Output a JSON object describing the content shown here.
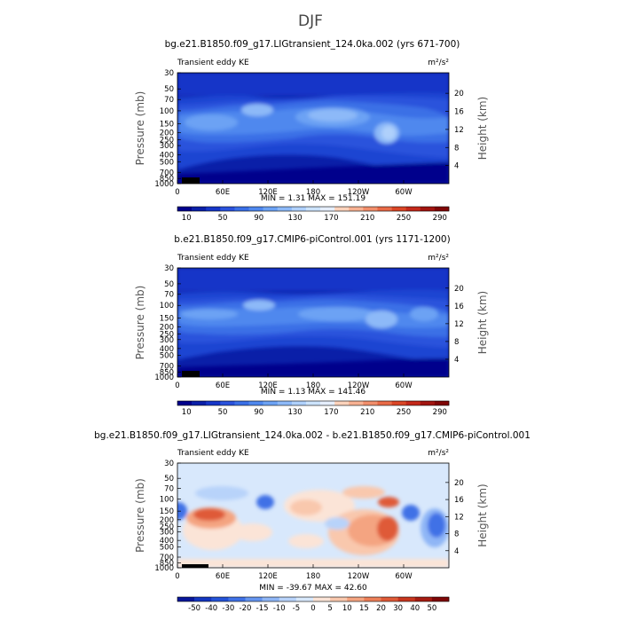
{
  "figure_title": "DJF",
  "chart_data": [
    {
      "type": "heatmap",
      "title": "bg.e21.B1850.f09_g17.LIGtransient_124.0ka.002 (yrs 671-700)",
      "left_label": "Transient eddy KE",
      "units": "m²/s²",
      "xlabel": "",
      "ylabel_left": "Pressure (mb)",
      "ylabel_right": "Height (km)",
      "x_ticks": [
        "0",
        "60E",
        "120E",
        "180",
        "120W",
        "60W"
      ],
      "x_tick_lon": [
        0,
        60,
        120,
        180,
        240,
        300
      ],
      "xlim": [
        0,
        360
      ],
      "p_ticks": [
        "30",
        "50",
        "70",
        "100",
        "150",
        "200",
        "250",
        "300",
        "400",
        "500",
        "700",
        "850",
        "1000"
      ],
      "p_tick_values": [
        30,
        50,
        70,
        100,
        150,
        200,
        250,
        300,
        400,
        500,
        700,
        850,
        1000
      ],
      "h_ticks": [
        "4",
        "8",
        "12",
        "16",
        "20"
      ],
      "h_tick_values": [
        4,
        8,
        12,
        16,
        20
      ],
      "ylim_mb": [
        30,
        1000
      ],
      "min_max": "MIN =     1.31   MAX = 151.19",
      "colorbar_labels": [
        "10",
        "50",
        "90",
        "130",
        "170",
        "210",
        "250",
        "290"
      ],
      "colorbar_colors": [
        "#00008c",
        "#0a1fa8",
        "#1636c8",
        "#2a52dc",
        "#3a6fe6",
        "#4f88ee",
        "#6ca2f4",
        "#8db9f8",
        "#afd0fb",
        "#cce3fc",
        "#e5eefc",
        "#fbd2bb",
        "#f7b192",
        "#f18e6b",
        "#e86a47",
        "#da4626",
        "#c4281a",
        "#a21510",
        "#800606"
      ],
      "bounds": [
        0,
        300
      ]
    },
    {
      "type": "heatmap",
      "title": "b.e21.B1850.f09_g17.CMIP6-piControl.001 (yrs 1171-1200)",
      "left_label": "Transient eddy KE",
      "units": "m²/s²",
      "xlabel": "",
      "ylabel_left": "Pressure (mb)",
      "ylabel_right": "Height (km)",
      "x_ticks": [
        "0",
        "60E",
        "120E",
        "180",
        "120W",
        "60W"
      ],
      "x_tick_lon": [
        0,
        60,
        120,
        180,
        240,
        300
      ],
      "xlim": [
        0,
        360
      ],
      "p_ticks": [
        "30",
        "50",
        "70",
        "100",
        "150",
        "200",
        "250",
        "300",
        "400",
        "500",
        "700",
        "850",
        "1000"
      ],
      "p_tick_values": [
        30,
        50,
        70,
        100,
        150,
        200,
        250,
        300,
        400,
        500,
        700,
        850,
        1000
      ],
      "h_ticks": [
        "4",
        "8",
        "12",
        "16",
        "20"
      ],
      "h_tick_values": [
        4,
        8,
        12,
        16,
        20
      ],
      "ylim_mb": [
        30,
        1000
      ],
      "min_max": "MIN =     1.13   MAX = 141.46",
      "colorbar_labels": [
        "10",
        "50",
        "90",
        "130",
        "170",
        "210",
        "250",
        "290"
      ],
      "colorbar_colors": [
        "#00008c",
        "#0a1fa8",
        "#1636c8",
        "#2a52dc",
        "#3a6fe6",
        "#4f88ee",
        "#6ca2f4",
        "#8db9f8",
        "#afd0fb",
        "#cce3fc",
        "#e5eefc",
        "#fbd2bb",
        "#f7b192",
        "#f18e6b",
        "#e86a47",
        "#da4626",
        "#c4281a",
        "#a21510",
        "#800606"
      ],
      "bounds": [
        0,
        300
      ]
    },
    {
      "type": "heatmap",
      "title": "bg.e21.B1850.f09_g17.LIGtransient_124.0ka.002 - b.e21.B1850.f09_g17.CMIP6-piControl.001",
      "left_label": "Transient eddy KE",
      "units": "m²/s²",
      "xlabel": "",
      "ylabel_left": "Pressure (mb)",
      "ylabel_right": "Height (km)",
      "x_ticks": [
        "0",
        "60E",
        "120E",
        "180",
        "120W",
        "60W"
      ],
      "x_tick_lon": [
        0,
        60,
        120,
        180,
        240,
        300
      ],
      "xlim": [
        0,
        360
      ],
      "p_ticks": [
        "30",
        "50",
        "70",
        "100",
        "150",
        "200",
        "250",
        "300",
        "400",
        "500",
        "700",
        "850",
        "1000"
      ],
      "p_tick_values": [
        30,
        50,
        70,
        100,
        150,
        200,
        250,
        300,
        400,
        500,
        700,
        850,
        1000
      ],
      "h_ticks": [
        "4",
        "8",
        "12",
        "16",
        "20"
      ],
      "h_tick_values": [
        4,
        8,
        12,
        16,
        20
      ],
      "ylim_mb": [
        30,
        1000
      ],
      "min_max": "MIN =   -39.67   MAX =   42.60",
      "colorbar_labels": [
        "-50",
        "-40",
        "-30",
        "-20",
        "-15",
        "-10",
        "-5",
        "0",
        "5",
        "10",
        "15",
        "20",
        "30",
        "40",
        "50"
      ],
      "colorbar_colors": [
        "#08179a",
        "#1436c0",
        "#2453d8",
        "#3f71e6",
        "#6595ef",
        "#8fb6f6",
        "#b8d3fa",
        "#d8e8fc",
        "#fbe4d7",
        "#f9c8ad",
        "#f4a481",
        "#ec7f58",
        "#df5a37",
        "#c8361f",
        "#a61c12",
        "#7e0707"
      ],
      "bounds": [
        -50,
        50
      ]
    }
  ]
}
